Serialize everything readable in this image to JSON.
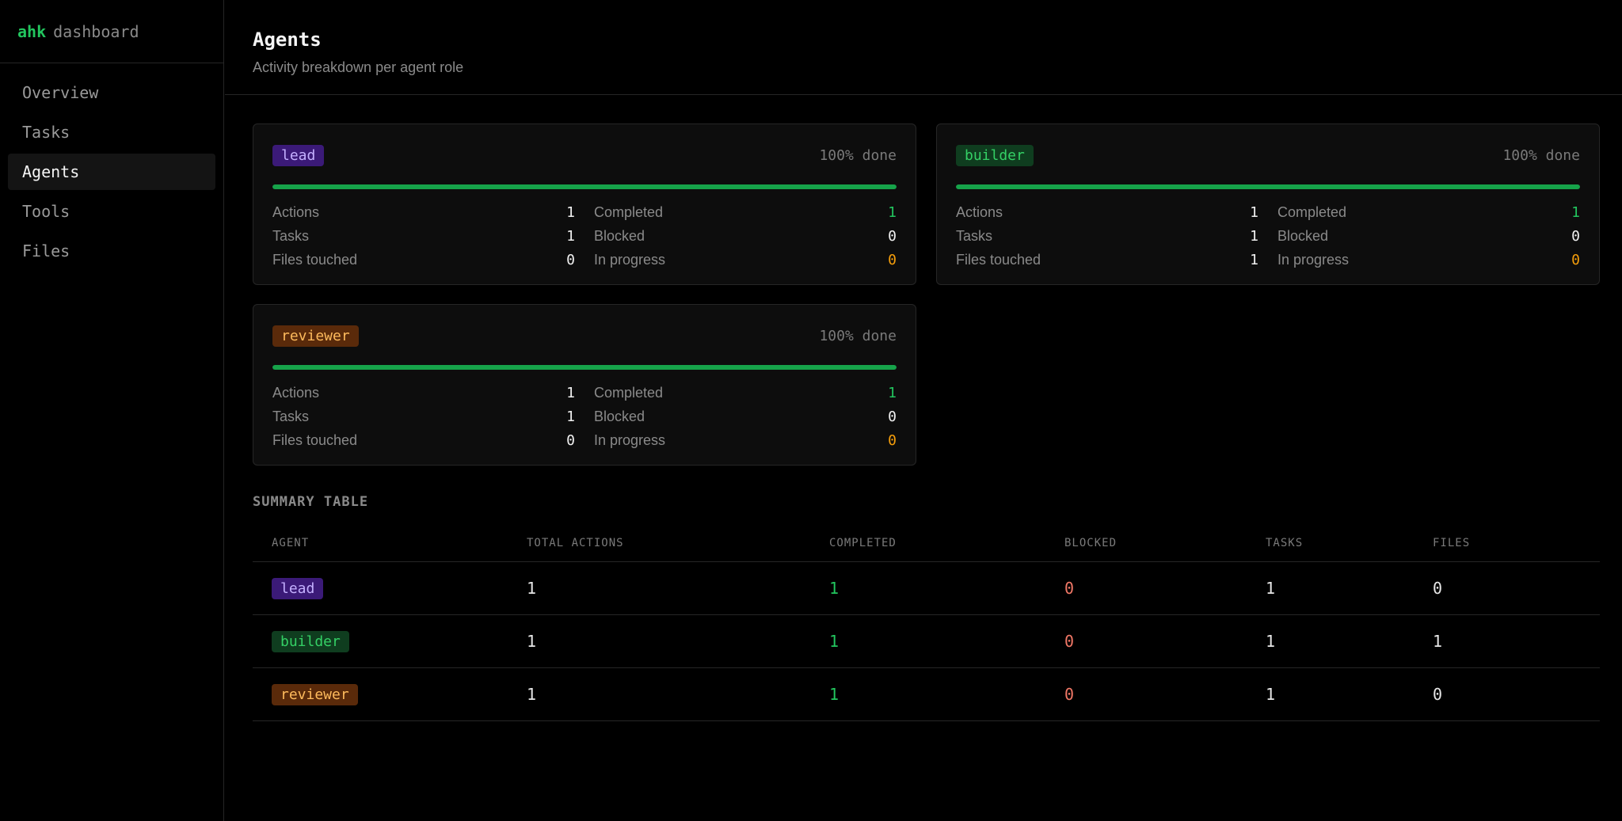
{
  "brand": {
    "primary": "ahk",
    "secondary": "dashboard"
  },
  "nav": {
    "items": [
      {
        "label": "Overview"
      },
      {
        "label": "Tasks"
      },
      {
        "label": "Agents"
      },
      {
        "label": "Tools"
      },
      {
        "label": "Files"
      }
    ],
    "active": "Agents"
  },
  "header": {
    "title": "Agents",
    "subtitle": "Activity breakdown per agent role"
  },
  "labels": {
    "actions": "Actions",
    "tasks": "Tasks",
    "files_touched": "Files touched",
    "completed": "Completed",
    "blocked": "Blocked",
    "in_progress": "In progress"
  },
  "cards": [
    {
      "role": "lead",
      "percent_label": "100% done",
      "progress": 1.0,
      "actions": "1",
      "tasks": "1",
      "files_touched": "0",
      "completed": "1",
      "blocked": "0",
      "in_progress": "0"
    },
    {
      "role": "builder",
      "percent_label": "100% done",
      "progress": 1.0,
      "actions": "1",
      "tasks": "1",
      "files_touched": "1",
      "completed": "1",
      "blocked": "0",
      "in_progress": "0"
    },
    {
      "role": "reviewer",
      "percent_label": "100% done",
      "progress": 1.0,
      "actions": "1",
      "tasks": "1",
      "files_touched": "0",
      "completed": "1",
      "blocked": "0",
      "in_progress": "0"
    }
  ],
  "summary": {
    "title": "SUMMARY TABLE",
    "columns": [
      "AGENT",
      "TOTAL ACTIONS",
      "COMPLETED",
      "BLOCKED",
      "TASKS",
      "FILES"
    ],
    "rows": [
      {
        "agent": "lead",
        "total_actions": "1",
        "completed": "1",
        "blocked": "0",
        "tasks": "1",
        "files": "0"
      },
      {
        "agent": "builder",
        "total_actions": "1",
        "completed": "1",
        "blocked": "0",
        "tasks": "1",
        "files": "1"
      },
      {
        "agent": "reviewer",
        "total_actions": "1",
        "completed": "1",
        "blocked": "0",
        "tasks": "1",
        "files": "0"
      }
    ]
  },
  "colors": {
    "accent_green": "#22c55e",
    "progress_fill": "#16a34a",
    "in_progress_orange": "#f59e0b",
    "blocked_red": "#f07766",
    "lead_badge_bg": "#3b1a78",
    "builder_badge_bg": "#0f3d1f",
    "reviewer_badge_bg": "#5a2a0a"
  }
}
